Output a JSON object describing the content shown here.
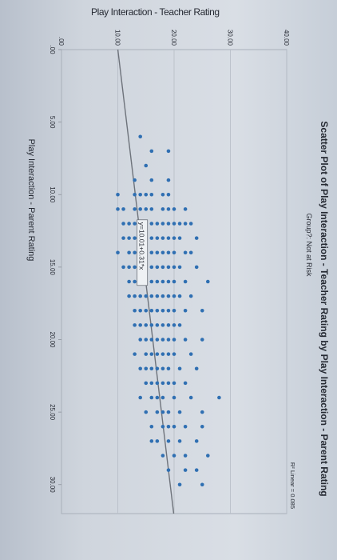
{
  "chart_data": {
    "type": "scatter",
    "title": "Scatter Plot of Play Interaction - Teacher Rating by Play Interaction - Parent Rating",
    "subtitle": "Group?: Not at Risk",
    "xlabel": "Play Interaction - Parent Rating",
    "ylabel": "Play Interaction - Teacher Rating",
    "xlim": [
      0,
      32
    ],
    "ylim": [
      0,
      40
    ],
    "xticks": [
      ".00",
      "5.00",
      "10.00",
      "15.00",
      "20.00",
      "25.00",
      "30.00"
    ],
    "yticks": [
      ".00",
      "10.00",
      "20.00",
      "30.00",
      "40.00"
    ],
    "grid": true,
    "legend": "R² Linear = 0.085",
    "fit_line": {
      "intercept": 10.01,
      "slope": 0.31,
      "label": "y=10.01+0.31*x"
    },
    "point_color": "#2f6fb2",
    "points": [
      [
        6,
        14
      ],
      [
        7,
        16
      ],
      [
        7,
        19
      ],
      [
        8,
        15
      ],
      [
        9,
        13
      ],
      [
        9,
        16
      ],
      [
        9,
        19
      ],
      [
        10,
        10
      ],
      [
        10,
        13
      ],
      [
        10,
        14
      ],
      [
        10,
        15
      ],
      [
        10,
        16
      ],
      [
        10,
        18
      ],
      [
        10,
        19
      ],
      [
        11,
        10
      ],
      [
        11,
        11
      ],
      [
        11,
        13
      ],
      [
        11,
        14
      ],
      [
        11,
        15
      ],
      [
        11,
        16
      ],
      [
        11,
        18
      ],
      [
        11,
        19
      ],
      [
        11,
        20
      ],
      [
        11,
        22
      ],
      [
        12,
        11
      ],
      [
        12,
        12
      ],
      [
        12,
        13
      ],
      [
        12,
        14
      ],
      [
        12,
        15
      ],
      [
        12,
        16
      ],
      [
        12,
        17
      ],
      [
        12,
        18
      ],
      [
        12,
        19
      ],
      [
        12,
        20
      ],
      [
        12,
        21
      ],
      [
        12,
        22
      ],
      [
        12,
        23
      ],
      [
        13,
        11
      ],
      [
        13,
        12
      ],
      [
        13,
        13
      ],
      [
        13,
        14
      ],
      [
        13,
        15
      ],
      [
        13,
        16
      ],
      [
        13,
        17
      ],
      [
        13,
        18
      ],
      [
        13,
        19
      ],
      [
        13,
        20
      ],
      [
        13,
        21
      ],
      [
        13,
        24
      ],
      [
        14,
        10
      ],
      [
        14,
        12
      ],
      [
        14,
        13
      ],
      [
        14,
        14
      ],
      [
        14,
        15
      ],
      [
        14,
        16
      ],
      [
        14,
        17
      ],
      [
        14,
        18
      ],
      [
        14,
        19
      ],
      [
        14,
        20
      ],
      [
        14,
        22
      ],
      [
        14,
        23
      ],
      [
        15,
        11
      ],
      [
        15,
        12
      ],
      [
        15,
        13
      ],
      [
        15,
        14
      ],
      [
        15,
        15
      ],
      [
        15,
        16
      ],
      [
        15,
        17
      ],
      [
        15,
        18
      ],
      [
        15,
        19
      ],
      [
        15,
        20
      ],
      [
        15,
        21
      ],
      [
        15,
        24
      ],
      [
        16,
        12
      ],
      [
        16,
        13
      ],
      [
        16,
        14
      ],
      [
        16,
        15
      ],
      [
        16,
        16
      ],
      [
        16,
        17
      ],
      [
        16,
        18
      ],
      [
        16,
        19
      ],
      [
        16,
        20
      ],
      [
        16,
        22
      ],
      [
        16,
        26
      ],
      [
        17,
        12
      ],
      [
        17,
        13
      ],
      [
        17,
        14
      ],
      [
        17,
        15
      ],
      [
        17,
        16
      ],
      [
        17,
        17
      ],
      [
        17,
        18
      ],
      [
        17,
        19
      ],
      [
        17,
        20
      ],
      [
        17,
        21
      ],
      [
        17,
        23
      ],
      [
        18,
        13
      ],
      [
        18,
        14
      ],
      [
        18,
        15
      ],
      [
        18,
        16
      ],
      [
        18,
        17
      ],
      [
        18,
        18
      ],
      [
        18,
        19
      ],
      [
        18,
        20
      ],
      [
        18,
        22
      ],
      [
        18,
        25
      ],
      [
        19,
        13
      ],
      [
        19,
        14
      ],
      [
        19,
        15
      ],
      [
        19,
        16
      ],
      [
        19,
        17
      ],
      [
        19,
        18
      ],
      [
        19,
        19
      ],
      [
        19,
        20
      ],
      [
        19,
        21
      ],
      [
        20,
        14
      ],
      [
        20,
        15
      ],
      [
        20,
        16
      ],
      [
        20,
        17
      ],
      [
        20,
        18
      ],
      [
        20,
        19
      ],
      [
        20,
        20
      ],
      [
        20,
        22
      ],
      [
        20,
        25
      ],
      [
        21,
        13
      ],
      [
        21,
        15
      ],
      [
        21,
        16
      ],
      [
        21,
        17
      ],
      [
        21,
        18
      ],
      [
        21,
        19
      ],
      [
        21,
        20
      ],
      [
        21,
        23
      ],
      [
        22,
        14
      ],
      [
        22,
        15
      ],
      [
        22,
        16
      ],
      [
        22,
        17
      ],
      [
        22,
        18
      ],
      [
        22,
        19
      ],
      [
        22,
        21
      ],
      [
        22,
        24
      ],
      [
        23,
        15
      ],
      [
        23,
        16
      ],
      [
        23,
        17
      ],
      [
        23,
        18
      ],
      [
        23,
        19
      ],
      [
        23,
        20
      ],
      [
        23,
        22
      ],
      [
        24,
        14
      ],
      [
        24,
        16
      ],
      [
        24,
        17
      ],
      [
        24,
        18
      ],
      [
        24,
        20
      ],
      [
        24,
        23
      ],
      [
        24,
        28
      ],
      [
        25,
        15
      ],
      [
        25,
        17
      ],
      [
        25,
        18
      ],
      [
        25,
        19
      ],
      [
        25,
        21
      ],
      [
        25,
        25
      ],
      [
        26,
        16
      ],
      [
        26,
        18
      ],
      [
        26,
        19
      ],
      [
        26,
        20
      ],
      [
        26,
        22
      ],
      [
        26,
        25
      ],
      [
        27,
        16
      ],
      [
        27,
        17
      ],
      [
        27,
        19
      ],
      [
        27,
        21
      ],
      [
        27,
        24
      ],
      [
        28,
        18
      ],
      [
        28,
        20
      ],
      [
        28,
        22
      ],
      [
        28,
        26
      ],
      [
        29,
        19
      ],
      [
        29,
        22
      ],
      [
        29,
        24
      ],
      [
        30,
        21
      ],
      [
        30,
        25
      ]
    ]
  }
}
